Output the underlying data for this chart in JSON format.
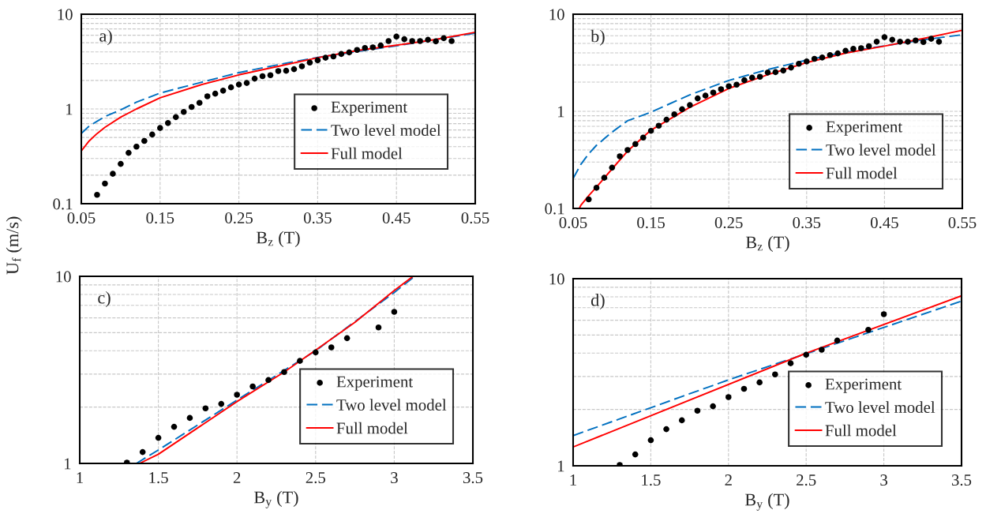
{
  "chart_data": [
    {
      "type": "scatter",
      "xlabel": "B$_{z}$ (T)",
      "ylabel": "U$_{f}$ (m/s)",
      "annotations": [
        "a)"
      ],
      "log": "y",
      "grid": true,
      "legend": "right",
      "xlim": [
        0.05,
        0.55
      ],
      "xticks": [
        0.05,
        0.15,
        0.25,
        0.35,
        0.45,
        0.55
      ],
      "ylim": [
        0.1,
        10
      ],
      "yticks": [
        0.1,
        1,
        10
      ],
      "series": [
        {
          "name": "Experiment",
          "marker": "circle",
          "color": "#000000",
          "x": [
            0.07,
            0.08,
            0.09,
            0.1,
            0.11,
            0.12,
            0.13,
            0.14,
            0.15,
            0.16,
            0.17,
            0.18,
            0.19,
            0.2,
            0.21,
            0.22,
            0.23,
            0.24,
            0.25,
            0.26,
            0.27,
            0.28,
            0.29,
            0.3,
            0.31,
            0.32,
            0.33,
            0.34,
            0.35,
            0.36,
            0.37,
            0.38,
            0.39,
            0.4,
            0.41,
            0.42,
            0.43,
            0.44,
            0.45,
            0.46,
            0.47,
            0.48,
            0.49,
            0.5,
            0.51,
            0.52
          ],
          "values": [
            0.124,
            0.163,
            0.207,
            0.263,
            0.344,
            0.4,
            0.46,
            0.537,
            0.63,
            0.71,
            0.82,
            0.93,
            1.05,
            1.16,
            1.36,
            1.45,
            1.56,
            1.69,
            1.81,
            1.88,
            2.09,
            2.22,
            2.27,
            2.51,
            2.53,
            2.63,
            2.82,
            3.09,
            3.26,
            3.47,
            3.58,
            3.8,
            3.95,
            4.2,
            4.4,
            4.47,
            4.68,
            5.21,
            5.8,
            5.45,
            5.21,
            5.21,
            5.37,
            5.17,
            5.58,
            5.21
          ]
        },
        {
          "name": "Two level model",
          "type": "line",
          "marker": "none",
          "line_style": "dashed",
          "color": "#0070c0",
          "x": [
            0.05,
            0.06,
            0.07,
            0.08,
            0.1,
            0.12,
            0.15,
            0.2,
            0.25,
            0.3,
            0.35,
            0.4,
            0.45,
            0.5,
            0.55
          ],
          "values": [
            0.55,
            0.66,
            0.74,
            0.83,
            0.98,
            1.18,
            1.47,
            1.89,
            2.42,
            2.93,
            3.5,
            4.04,
            4.64,
            5.41,
            6.31
          ]
        },
        {
          "name": "Full model",
          "type": "line",
          "marker": "none",
          "line_style": "solid",
          "color": "#ff0000",
          "x": [
            0.05,
            0.06,
            0.07,
            0.08,
            0.1,
            0.12,
            0.15,
            0.2,
            0.25,
            0.3,
            0.35,
            0.4,
            0.45,
            0.5,
            0.55
          ],
          "values": [
            0.36,
            0.46,
            0.55,
            0.64,
            0.82,
            1.0,
            1.31,
            1.78,
            2.29,
            2.82,
            3.47,
            4.14,
            4.71,
            5.41,
            6.45
          ]
        }
      ]
    },
    {
      "type": "scatter",
      "xlabel": "B$_{z}$ (T)",
      "annotations": [
        "b)"
      ],
      "log": "y",
      "grid": true,
      "legend": "bottom right",
      "xlim": [
        0.05,
        0.55
      ],
      "xticks": [
        0.05,
        0.15,
        0.25,
        0.35,
        0.45,
        0.55
      ],
      "ylim": [
        0.1,
        10
      ],
      "yticks": [
        0.1,
        1,
        10
      ],
      "series": [
        {
          "name": "Experiment",
          "marker": "circle",
          "color": "#000000",
          "x": [
            0.07,
            0.08,
            0.09,
            0.1,
            0.11,
            0.12,
            0.13,
            0.14,
            0.15,
            0.16,
            0.17,
            0.18,
            0.19,
            0.2,
            0.21,
            0.22,
            0.23,
            0.24,
            0.25,
            0.26,
            0.27,
            0.28,
            0.29,
            0.3,
            0.31,
            0.32,
            0.33,
            0.34,
            0.35,
            0.36,
            0.37,
            0.38,
            0.39,
            0.4,
            0.41,
            0.42,
            0.43,
            0.44,
            0.45,
            0.46,
            0.47,
            0.48,
            0.49,
            0.5,
            0.51,
            0.52
          ],
          "values": [
            0.124,
            0.163,
            0.207,
            0.263,
            0.344,
            0.4,
            0.46,
            0.537,
            0.63,
            0.71,
            0.82,
            0.93,
            1.05,
            1.16,
            1.36,
            1.45,
            1.56,
            1.69,
            1.81,
            1.88,
            2.09,
            2.22,
            2.27,
            2.51,
            2.53,
            2.63,
            2.82,
            3.09,
            3.26,
            3.47,
            3.58,
            3.8,
            3.95,
            4.2,
            4.4,
            4.47,
            4.68,
            5.21,
            5.8,
            5.45,
            5.21,
            5.21,
            5.37,
            5.17,
            5.58,
            5.21
          ]
        },
        {
          "name": "Two level model",
          "type": "line",
          "marker": "none",
          "line_style": "dashed",
          "color": "#0070c0",
          "x": [
            0.05,
            0.06,
            0.07,
            0.08,
            0.1,
            0.12,
            0.15,
            0.2,
            0.25,
            0.3,
            0.35,
            0.4,
            0.45,
            0.5,
            0.55
          ],
          "values": [
            0.204,
            0.285,
            0.365,
            0.447,
            0.61,
            0.8,
            0.98,
            1.48,
            2.08,
            2.69,
            3.37,
            4.07,
            4.73,
            5.45,
            6.15
          ]
        },
        {
          "name": "Full model",
          "type": "line",
          "marker": "none",
          "line_style": "solid",
          "color": "#ff0000",
          "x": [
            0.058,
            0.06,
            0.07,
            0.08,
            0.1,
            0.12,
            0.15,
            0.2,
            0.25,
            0.3,
            0.35,
            0.4,
            0.45,
            0.5,
            0.55
          ],
          "values": [
            0.1,
            0.108,
            0.135,
            0.166,
            0.255,
            0.39,
            0.64,
            1.1,
            1.72,
            2.38,
            3.18,
            3.98,
            4.7,
            5.62,
            6.83
          ]
        }
      ]
    },
    {
      "type": "scatter",
      "xlabel": "B$_{y}$ (T)",
      "annotations": [
        "c)"
      ],
      "log": "y",
      "grid": true,
      "legend": "bottom right",
      "xlim": [
        1,
        3.5
      ],
      "xticks": [
        1,
        1.5,
        2,
        2.5,
        3,
        3.5
      ],
      "ylim": [
        1,
        10
      ],
      "yticks": [
        1,
        10
      ],
      "series": [
        {
          "name": "Experiment",
          "marker": "circle",
          "color": "#000000",
          "x": [
            1.3,
            1.4,
            1.5,
            1.6,
            1.7,
            1.8,
            1.9,
            2.0,
            2.1,
            2.2,
            2.3,
            2.4,
            2.5,
            2.6,
            2.7,
            2.9,
            3.0
          ],
          "values": [
            1.01,
            1.15,
            1.37,
            1.57,
            1.75,
            1.97,
            2.08,
            2.33,
            2.58,
            2.79,
            3.08,
            3.53,
            3.92,
            4.17,
            4.67,
            5.33,
            6.46
          ]
        },
        {
          "name": "Two level model",
          "type": "line",
          "marker": "none",
          "line_style": "dashed",
          "color": "#0070c0",
          "x": [
            1.36,
            1.5,
            2.0,
            2.5,
            3.0,
            3.13
          ],
          "values": [
            1.0,
            1.18,
            2.18,
            4.0,
            8.2,
            10
          ]
        },
        {
          "name": "Full model",
          "type": "line",
          "marker": "none",
          "line_style": "solid",
          "color": "#ff0000",
          "x": [
            1.38,
            1.5,
            2.0,
            2.3,
            2.5,
            2.75,
            3.0,
            3.12
          ],
          "values": [
            1.0,
            1.12,
            2.14,
            3.08,
            4.03,
            5.68,
            8.4,
            10
          ]
        }
      ]
    },
    {
      "type": "scatter",
      "xlabel": "B$_{y}$ (T)",
      "annotations": [
        "d)"
      ],
      "log": "y",
      "grid": true,
      "legend": "bottom right",
      "xlim": [
        1,
        3.5
      ],
      "xticks": [
        1,
        1.5,
        2,
        2.5,
        3,
        3.5
      ],
      "ylim": [
        1,
        10
      ],
      "yticks": [
        1,
        10
      ],
      "series": [
        {
          "name": "Experiment",
          "marker": "circle",
          "color": "#000000",
          "x": [
            1.3,
            1.4,
            1.5,
            1.6,
            1.7,
            1.8,
            1.9,
            2.0,
            2.1,
            2.2,
            2.3,
            2.4,
            2.5,
            2.6,
            2.7,
            2.9,
            3.0
          ],
          "values": [
            1.01,
            1.15,
            1.37,
            1.57,
            1.75,
            1.97,
            2.08,
            2.33,
            2.58,
            2.79,
            3.08,
            3.53,
            3.92,
            4.17,
            4.67,
            5.33,
            6.46
          ]
        },
        {
          "name": "Two level model",
          "type": "line",
          "marker": "none",
          "line_style": "dashed",
          "color": "#0070c0",
          "x": [
            1.0,
            2.0,
            2.5,
            3.5
          ],
          "values": [
            1.45,
            2.88,
            3.97,
            7.59
          ]
        },
        {
          "name": "Full model",
          "type": "line",
          "marker": "none",
          "line_style": "solid",
          "color": "#ff0000",
          "x": [
            1.0,
            2.5,
            3.5
          ],
          "values": [
            1.26,
            4.0,
            8.1
          ]
        }
      ]
    }
  ]
}
